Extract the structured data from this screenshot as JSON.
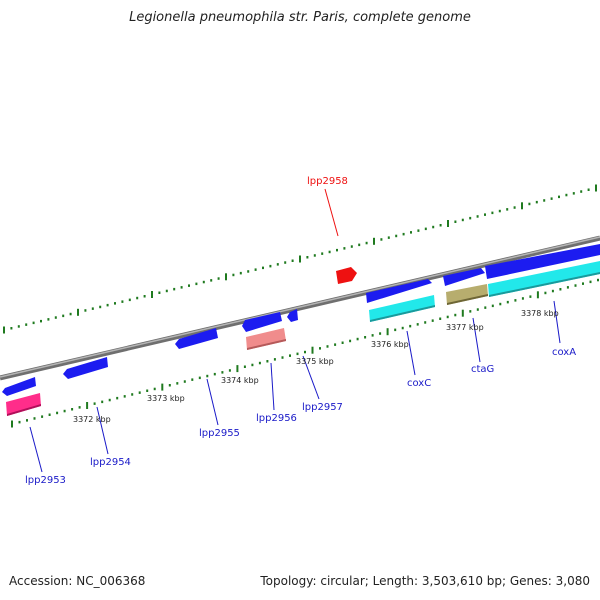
{
  "title": "Legionella pneumophila str. Paris, complete genome",
  "footer": {
    "accession": "Accession: NC_006368",
    "summary": "Topology: circular; Length: 3,503,610 bp; Genes: 3,080"
  },
  "colors": {
    "backbone": "#8a8a8a",
    "tick": "#1f7a1f",
    "cds": "#1c1cf0",
    "highlight": "#ee1111",
    "trna": "#ff2d8a",
    "pseudo": "#f08c8c",
    "rrna": "#22e8ea",
    "other": "#b7ad6e",
    "label": "#1a1ac8"
  },
  "ticks": [
    {
      "label": "3372 kbp"
    },
    {
      "label": "3373 kbp"
    },
    {
      "label": "3374 kbp"
    },
    {
      "label": "3375 kbp"
    },
    {
      "label": "3376 kbp"
    },
    {
      "label": "3377 kbp"
    },
    {
      "label": "3378 kbp"
    }
  ],
  "genes": [
    {
      "name": "lpp2953",
      "label": "lpp2953",
      "color": "trna"
    },
    {
      "name": "lpp2954",
      "label": "lpp2954",
      "color": "cds"
    },
    {
      "name": "lpp2955",
      "label": "lpp2955",
      "color": "cds"
    },
    {
      "name": "lpp2956",
      "label": "lpp2956",
      "color": "pseudo"
    },
    {
      "name": "lpp2957",
      "label": "lpp2957",
      "color": "cds"
    },
    {
      "name": "lpp2958",
      "label": "lpp2958",
      "color": "highlight"
    },
    {
      "name": "coxC",
      "label": "coxC",
      "color": "rrna"
    },
    {
      "name": "ctaG",
      "label": "ctaG",
      "color": "other"
    },
    {
      "name": "coxA",
      "label": "coxA",
      "color": "rrna"
    }
  ]
}
